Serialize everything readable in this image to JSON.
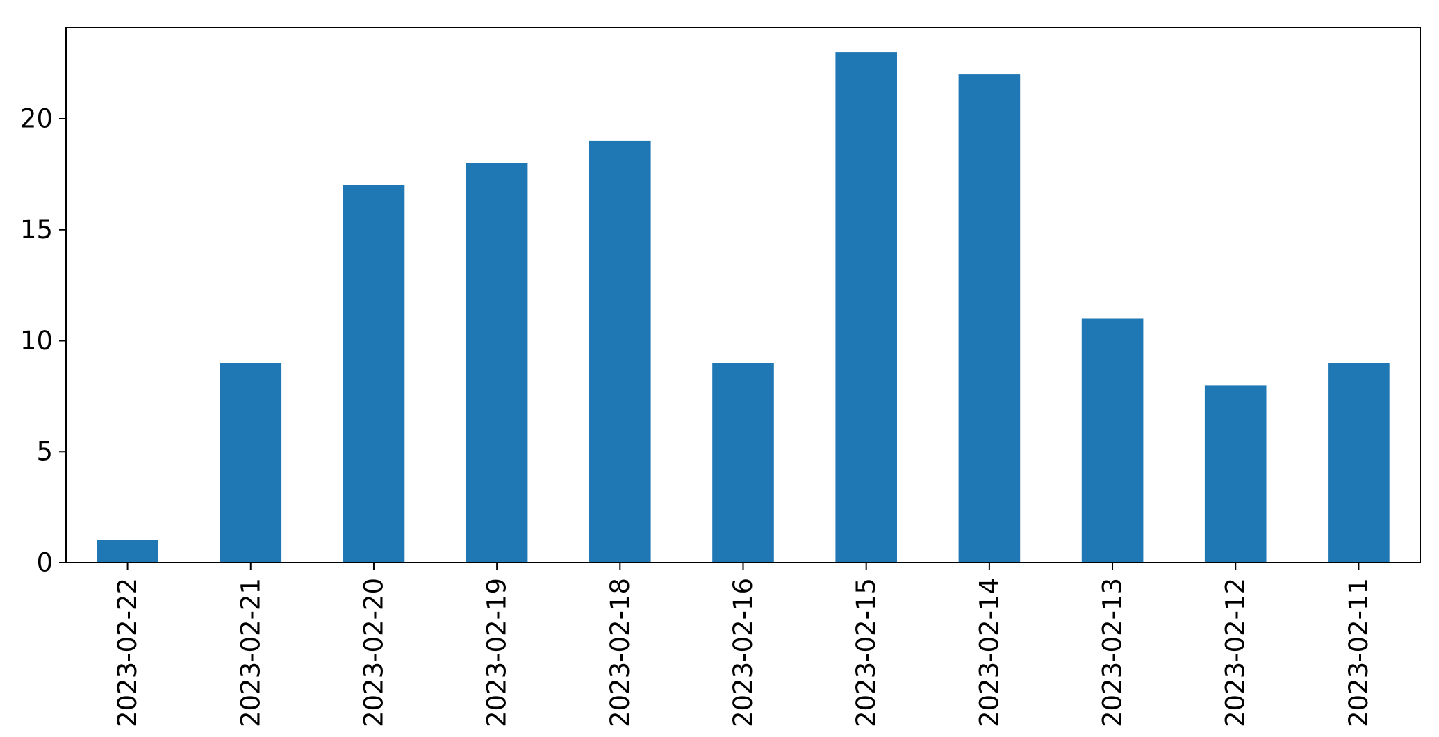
{
  "chart_data": {
    "type": "bar",
    "categories": [
      "2023-02-22",
      "2023-02-21",
      "2023-02-20",
      "2023-02-19",
      "2023-02-18",
      "2023-02-16",
      "2023-02-15",
      "2023-02-14",
      "2023-02-13",
      "2023-02-12",
      "2023-02-11"
    ],
    "values": [
      1,
      9,
      17,
      18,
      19,
      9,
      23,
      22,
      11,
      8,
      9
    ],
    "title": "",
    "xlabel": "",
    "ylabel": "",
    "ylim": [
      0,
      24.1
    ],
    "yticks": [
      0,
      5,
      10,
      15,
      20
    ],
    "ytick_labels": [
      "0",
      "5",
      "10",
      "15",
      "20"
    ],
    "xtick_label_rotation": 90,
    "bar_color": "#1f77b4",
    "axis_color": "#000000",
    "background_color": "#ffffff",
    "grid": false,
    "legend_position": "none"
  }
}
